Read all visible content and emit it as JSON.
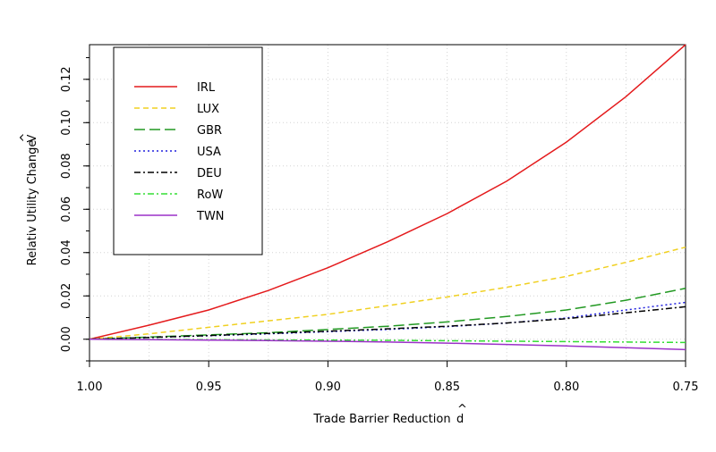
{
  "chart_data": {
    "type": "line",
    "title": "",
    "xlabel": "Trade Barrier Reduction",
    "xlabel_hat_symbol": "d",
    "ylabel": "Relativ Utility Change",
    "ylabel_hat_symbol": "V",
    "xlim": [
      1.0,
      0.75
    ],
    "x_reversed": true,
    "ylim": [
      -0.01,
      0.136
    ],
    "x_ticks": [
      "1.00",
      "0.95",
      "0.90",
      "0.85",
      "0.80",
      "0.75"
    ],
    "y_ticks": [
      "0.00",
      "0.02",
      "0.04",
      "0.06",
      "0.08",
      "0.10",
      "0.12"
    ],
    "x": [
      1.0,
      0.975,
      0.95,
      0.925,
      0.9,
      0.875,
      0.85,
      0.825,
      0.8,
      0.775,
      0.75
    ],
    "grid": true,
    "legend_position": "top-left",
    "series": [
      {
        "name": "IRL",
        "color": "#e41a1c",
        "dash": "solid",
        "values": [
          0.0,
          0.0065,
          0.0135,
          0.0225,
          0.033,
          0.045,
          0.058,
          0.073,
          0.091,
          0.112,
          0.136
        ]
      },
      {
        "name": "LUX",
        "color": "#f0d020",
        "dash": "dashed",
        "values": [
          0.0,
          0.0025,
          0.0055,
          0.0085,
          0.0115,
          0.0155,
          0.0195,
          0.024,
          0.029,
          0.0355,
          0.0425
        ]
      },
      {
        "name": "GBR",
        "color": "#229922",
        "dash": "longdash",
        "values": [
          0.0,
          0.001,
          0.002,
          0.003,
          0.0045,
          0.006,
          0.008,
          0.0105,
          0.0135,
          0.018,
          0.0235
        ]
      },
      {
        "name": "USA",
        "color": "#2020dd",
        "dash": "dotted",
        "values": [
          0.0,
          0.0008,
          0.0016,
          0.0025,
          0.0035,
          0.0045,
          0.0058,
          0.0075,
          0.0098,
          0.0135,
          0.017
        ]
      },
      {
        "name": "DEU",
        "color": "#000000",
        "dash": "dotdash",
        "values": [
          0.0,
          0.0008,
          0.0017,
          0.0027,
          0.0037,
          0.0048,
          0.006,
          0.0075,
          0.0095,
          0.0122,
          0.015
        ]
      },
      {
        "name": "RoW",
        "color": "#33dd33",
        "dash": "dotdash",
        "values": [
          0.0,
          -0.0001,
          -0.0002,
          -0.0003,
          -0.0004,
          -0.0005,
          -0.0007,
          -0.0009,
          -0.0011,
          -0.0013,
          -0.0015
        ]
      },
      {
        "name": "TWN",
        "color": "#9b30c8",
        "dash": "solid",
        "values": [
          0.0,
          -0.0002,
          -0.0004,
          -0.0006,
          -0.0009,
          -0.0013,
          -0.0018,
          -0.0024,
          -0.0031,
          -0.0039,
          -0.0048
        ]
      }
    ]
  }
}
